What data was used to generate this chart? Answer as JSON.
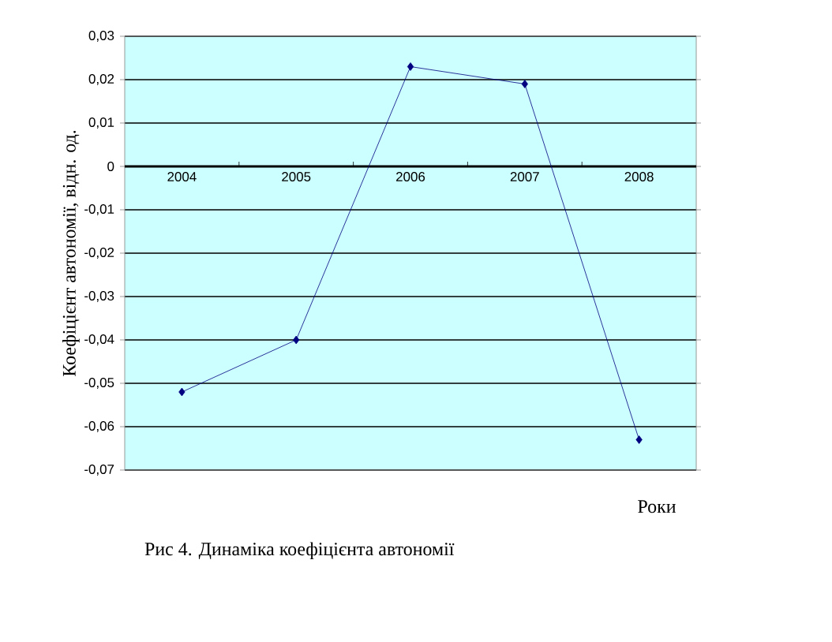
{
  "chart_data": {
    "type": "line",
    "categories": [
      "2004",
      "2005",
      "2006",
      "2007",
      "2008"
    ],
    "series": [
      {
        "color": "#000080",
        "values": [
          -0.052,
          -0.04,
          0.023,
          0.019,
          -0.063
        ]
      }
    ],
    "ylabel": "Коефіцієнт автономії, відн. од.",
    "xlabel": "Роки",
    "annotations": [
      "Рис 4. Динаміка коефіцієнта автономії"
    ],
    "ylim": [
      -0.07,
      0.03
    ],
    "yticks": [
      {
        "value": 0.03,
        "label": "0,03"
      },
      {
        "value": 0.02,
        "label": "0,02"
      },
      {
        "value": 0.01,
        "label": "0,01"
      },
      0,
      {
        "value": -0.01,
        "label": "-0,01"
      },
      {
        "value": -0.02,
        "label": "-0,02"
      },
      {
        "value": -0.03,
        "label": "-0,03"
      },
      {
        "value": -0.04,
        "label": "-0,04"
      },
      {
        "value": -0.05,
        "label": "-0,05"
      },
      {
        "value": -0.06,
        "label": "-0,06"
      },
      {
        "value": -0.07,
        "label": "-0,07"
      }
    ],
    "grid": "y",
    "marker": "diamond",
    "line_style": "solid"
  }
}
